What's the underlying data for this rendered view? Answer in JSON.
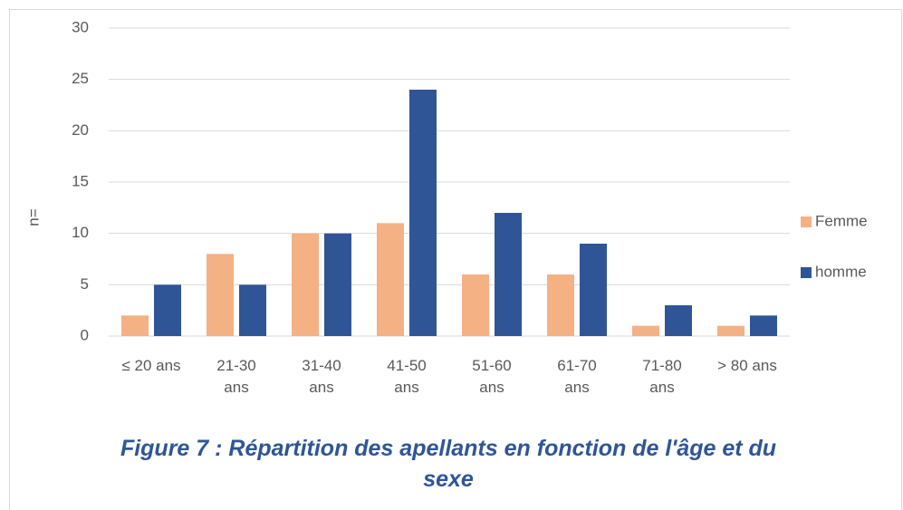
{
  "chart_data": {
    "type": "bar",
    "title": "Figure 7 : Répartition des apellants en fonction de l'âge et du sexe",
    "y_label": "n=",
    "categories": [
      "≤ 20 ans",
      "21-30 ans",
      "31-40 ans",
      "41-50 ans",
      "51-60 ans",
      "61-70 ans",
      "71-80 ans",
      "> 80 ans"
    ],
    "series": [
      {
        "name": "Femme",
        "color": "#f4b183",
        "values": [
          2,
          8,
          10,
          11,
          6,
          6,
          1,
          1
        ]
      },
      {
        "name": "homme",
        "color": "#2f5597",
        "values": [
          5,
          5,
          10,
          24,
          12,
          9,
          3,
          2
        ]
      }
    ],
    "ylim": [
      0,
      30
    ],
    "yticks": [
      0,
      5,
      10,
      15,
      20,
      25,
      30
    ],
    "grid": true,
    "legend": "right"
  }
}
